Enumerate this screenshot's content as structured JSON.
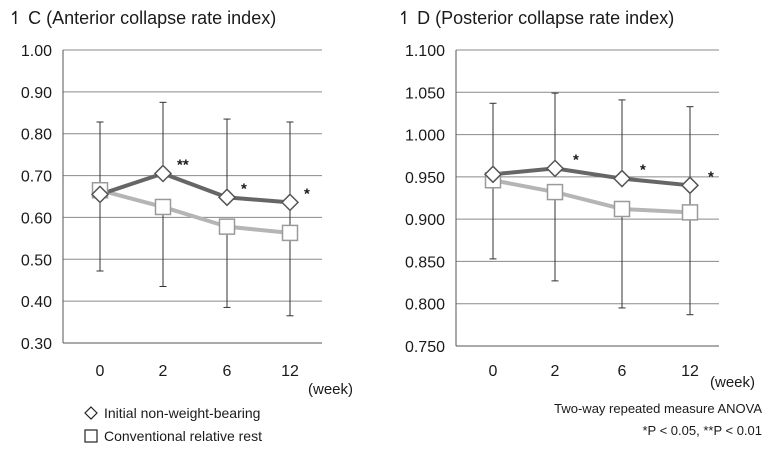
{
  "chart_data": [
    {
      "type": "line",
      "panel_label": "C",
      "title": "C (Anterior collapse rate index)",
      "x": [
        "0",
        "2",
        "6",
        "12"
      ],
      "xunit": "(week)",
      "ylim": [
        0.3,
        1.0
      ],
      "yticks": [
        "0.30",
        "0.40",
        "0.50",
        "0.60",
        "0.70",
        "0.80",
        "0.90",
        "1.00"
      ],
      "grid": true,
      "series": [
        {
          "name": "Initial non-weight-bearing",
          "marker": "diamond",
          "color": "#666666",
          "values": [
            0.655,
            0.705,
            0.648,
            0.636
          ],
          "error_upper": [
            0.828,
            0.875,
            0.835,
            0.828
          ],
          "error_lower": [
            0.472,
            null,
            null,
            0.365
          ],
          "significance": [
            "",
            "**",
            "*",
            "*"
          ]
        },
        {
          "name": "Conventional relative rest",
          "marker": "square",
          "color": "#b5b5b5",
          "values": [
            0.665,
            0.625,
            0.578,
            0.563
          ],
          "error_lower": [
            null,
            0.435,
            0.385,
            null
          ]
        }
      ]
    },
    {
      "type": "line",
      "panel_label": "D",
      "title": "D (Posterior collapse rate index)",
      "x": [
        "0",
        "2",
        "6",
        "12"
      ],
      "xunit": "(week)",
      "ylim": [
        0.75,
        1.1
      ],
      "yticks": [
        "0.750",
        "0.800",
        "0.850",
        "0.900",
        "0.950",
        "1.000",
        "1.050",
        "1.100"
      ],
      "grid": true,
      "series": [
        {
          "name": "Initial non-weight-bearing",
          "marker": "diamond",
          "color": "#666666",
          "values": [
            0.953,
            0.96,
            0.948,
            0.94
          ],
          "error_upper": [
            1.037,
            1.049,
            1.041,
            1.033
          ],
          "error_lower": [
            0.853,
            null,
            null,
            0.787
          ],
          "significance": [
            "",
            "*",
            "*",
            "*"
          ]
        },
        {
          "name": "Conventional relative rest",
          "marker": "square",
          "color": "#b5b5b5",
          "values": [
            0.946,
            0.932,
            0.912,
            0.908
          ],
          "error_lower": [
            null,
            0.827,
            0.795,
            null
          ]
        }
      ]
    }
  ],
  "legend": {
    "items": [
      {
        "label": "Initial non-weight-bearing",
        "marker": "diamond"
      },
      {
        "label": "Conventional relative rest",
        "marker": "square"
      }
    ]
  },
  "notes": {
    "line1": "Two-way repeated measure ANOVA",
    "line2": "*P < 0.05, **P < 0.01"
  },
  "colors": {
    "series_dark": "#666666",
    "series_light": "#b5b5b5",
    "grid": "#8a8a8a"
  }
}
